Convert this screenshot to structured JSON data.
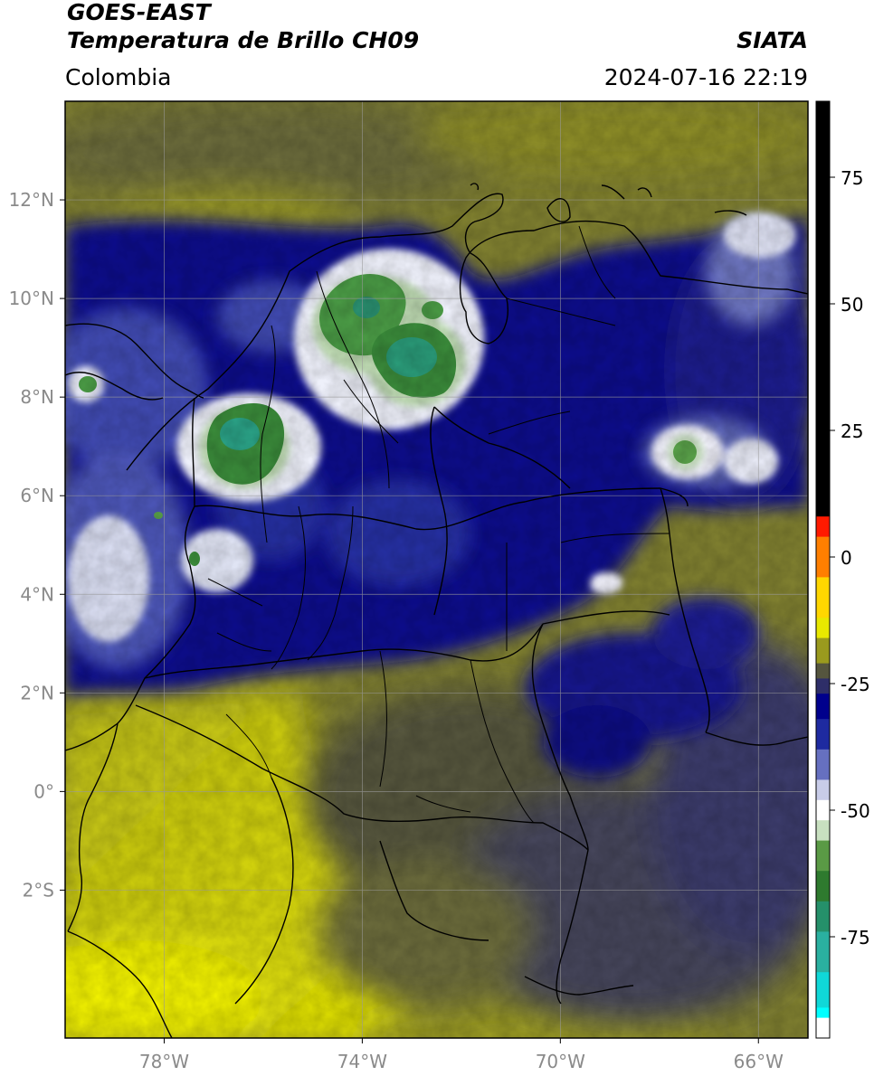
{
  "header": {
    "satellite": "GOES-EAST",
    "product": "Temperatura de Brillo CH09",
    "agency": "SIATA",
    "region": "Colombia",
    "timestamp": "2024-07-16 22:19"
  },
  "map": {
    "lon_range": [
      -80,
      -65
    ],
    "lat_range": [
      -5,
      14
    ],
    "lat_ticks": [
      {
        "value": 12,
        "label": "12°N"
      },
      {
        "value": 10,
        "label": "10°N"
      },
      {
        "value": 8,
        "label": "8°N"
      },
      {
        "value": 6,
        "label": "6°N"
      },
      {
        "value": 4,
        "label": "4°N"
      },
      {
        "value": 2,
        "label": "2°N"
      },
      {
        "value": 0,
        "label": "0°"
      },
      {
        "value": -2,
        "label": "2°S"
      }
    ],
    "lon_ticks": [
      {
        "value": -78,
        "label": "78°W"
      },
      {
        "value": -74,
        "label": "74°W"
      },
      {
        "value": -70,
        "label": "70°W"
      },
      {
        "value": -66,
        "label": "66°W"
      }
    ],
    "grid": true
  },
  "colorbar": {
    "range": [
      -95,
      90
    ],
    "ticks": [
      {
        "value": 75,
        "label": "75"
      },
      {
        "value": 50,
        "label": "50"
      },
      {
        "value": 25,
        "label": "25"
      },
      {
        "value": 0,
        "label": "0"
      },
      {
        "value": -25,
        "label": "-25"
      },
      {
        "value": -50,
        "label": "-50"
      },
      {
        "value": -75,
        "label": "-75"
      }
    ],
    "segments": [
      {
        "from": 8,
        "to": 90,
        "color": "#000000"
      },
      {
        "from": 4,
        "to": 8,
        "color": "#ff1a00"
      },
      {
        "from": -4,
        "to": 4,
        "color": "#ff7f00"
      },
      {
        "from": -12,
        "to": -4,
        "color": "#ffd700"
      },
      {
        "from": -16,
        "to": -12,
        "color": "#e8e800"
      },
      {
        "from": -21,
        "to": -16,
        "color": "#9a9a1e"
      },
      {
        "from": -24,
        "to": -21,
        "color": "#55553e"
      },
      {
        "from": -27,
        "to": -24,
        "color": "#2e2e68"
      },
      {
        "from": -32,
        "to": -27,
        "color": "#00008c"
      },
      {
        "from": -38,
        "to": -32,
        "color": "#1e2aa0"
      },
      {
        "from": -44,
        "to": -38,
        "color": "#6670c0"
      },
      {
        "from": -48,
        "to": -44,
        "color": "#c8cce8"
      },
      {
        "from": -52,
        "to": -48,
        "color": "#ffffff"
      },
      {
        "from": -56,
        "to": -52,
        "color": "#c8e0c0"
      },
      {
        "from": -62,
        "to": -56,
        "color": "#5a9a45"
      },
      {
        "from": -68,
        "to": -62,
        "color": "#2e7a2e"
      },
      {
        "from": -74,
        "to": -68,
        "color": "#25906a"
      },
      {
        "from": -82,
        "to": -74,
        "color": "#2ab0a0"
      },
      {
        "from": -89,
        "to": -82,
        "color": "#10d8d8"
      },
      {
        "from": -91,
        "to": -89,
        "color": "#00ffff"
      },
      {
        "from": -95,
        "to": -91,
        "color": "#ffffff"
      }
    ]
  }
}
